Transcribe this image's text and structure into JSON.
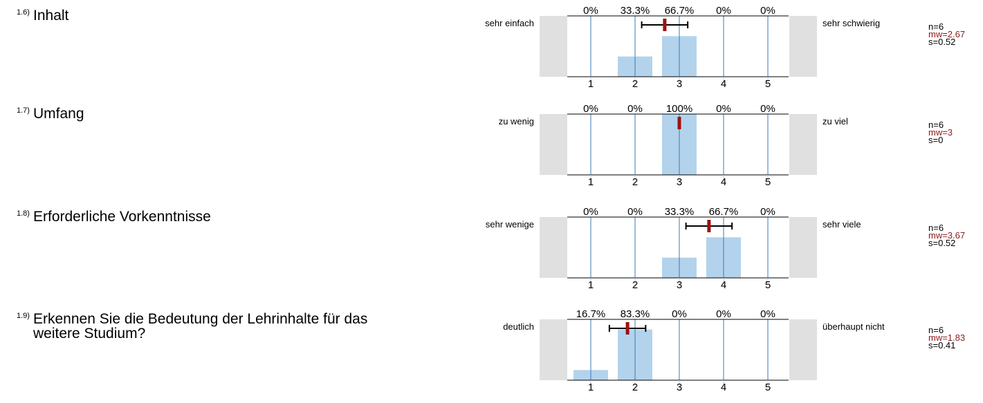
{
  "chart_data": [
    {
      "type": "bar",
      "question_number": "1.6)",
      "question": "Inhalt",
      "left_label": "sehr einfach",
      "right_label": "sehr schwierig",
      "categories": [
        "1",
        "2",
        "3",
        "4",
        "5"
      ],
      "values": [
        0,
        33.3,
        66.7,
        0,
        0
      ],
      "percent_labels": [
        "0%",
        "33.3%",
        "66.7%",
        "0%",
        "0%"
      ],
      "mean": 2.67,
      "sd": 0.52,
      "stats": {
        "n": "n=6",
        "mw": "mw=2.67",
        "s": "s=0.52"
      },
      "ylim": [
        0,
        100
      ]
    },
    {
      "type": "bar",
      "question_number": "1.7)",
      "question": "Umfang",
      "left_label": "zu wenig",
      "right_label": "zu viel",
      "categories": [
        "1",
        "2",
        "3",
        "4",
        "5"
      ],
      "values": [
        0,
        0,
        100,
        0,
        0
      ],
      "percent_labels": [
        "0%",
        "0%",
        "100%",
        "0%",
        "0%"
      ],
      "mean": 3,
      "sd": 0,
      "stats": {
        "n": "n=6",
        "mw": "mw=3",
        "s": "s=0"
      },
      "ylim": [
        0,
        100
      ]
    },
    {
      "type": "bar",
      "question_number": "1.8)",
      "question": "Erforderliche Vorkenntnisse",
      "left_label": "sehr wenige",
      "right_label": "sehr viele",
      "categories": [
        "1",
        "2",
        "3",
        "4",
        "5"
      ],
      "values": [
        0,
        0,
        33.3,
        66.7,
        0
      ],
      "percent_labels": [
        "0%",
        "0%",
        "33.3%",
        "66.7%",
        "0%"
      ],
      "mean": 3.67,
      "sd": 0.52,
      "stats": {
        "n": "n=6",
        "mw": "mw=3.67",
        "s": "s=0.52"
      },
      "ylim": [
        0,
        100
      ]
    },
    {
      "type": "bar",
      "question_number": "1.9)",
      "question": "Erkennen Sie die Bedeutung der Lehrinhalte für das weitere Studium?",
      "left_label": "deutlich",
      "right_label": "überhaupt nicht",
      "categories": [
        "1",
        "2",
        "3",
        "4",
        "5"
      ],
      "values": [
        16.7,
        83.3,
        0,
        0,
        0
      ],
      "percent_labels": [
        "16.7%",
        "83.3%",
        "0%",
        "0%",
        "0%"
      ],
      "mean": 1.83,
      "sd": 0.41,
      "stats": {
        "n": "n=6",
        "mw": "mw=1.83",
        "s": "s=0.41"
      },
      "ylim": [
        0,
        100
      ]
    }
  ],
  "colors": {
    "bar": "#b3d3ec",
    "gridline": "#3a78b8",
    "side_box": "#e0e0e0",
    "mean_marker": "#a01010",
    "sd_bar": "#000000",
    "mw_text": "#8b1a1a"
  }
}
